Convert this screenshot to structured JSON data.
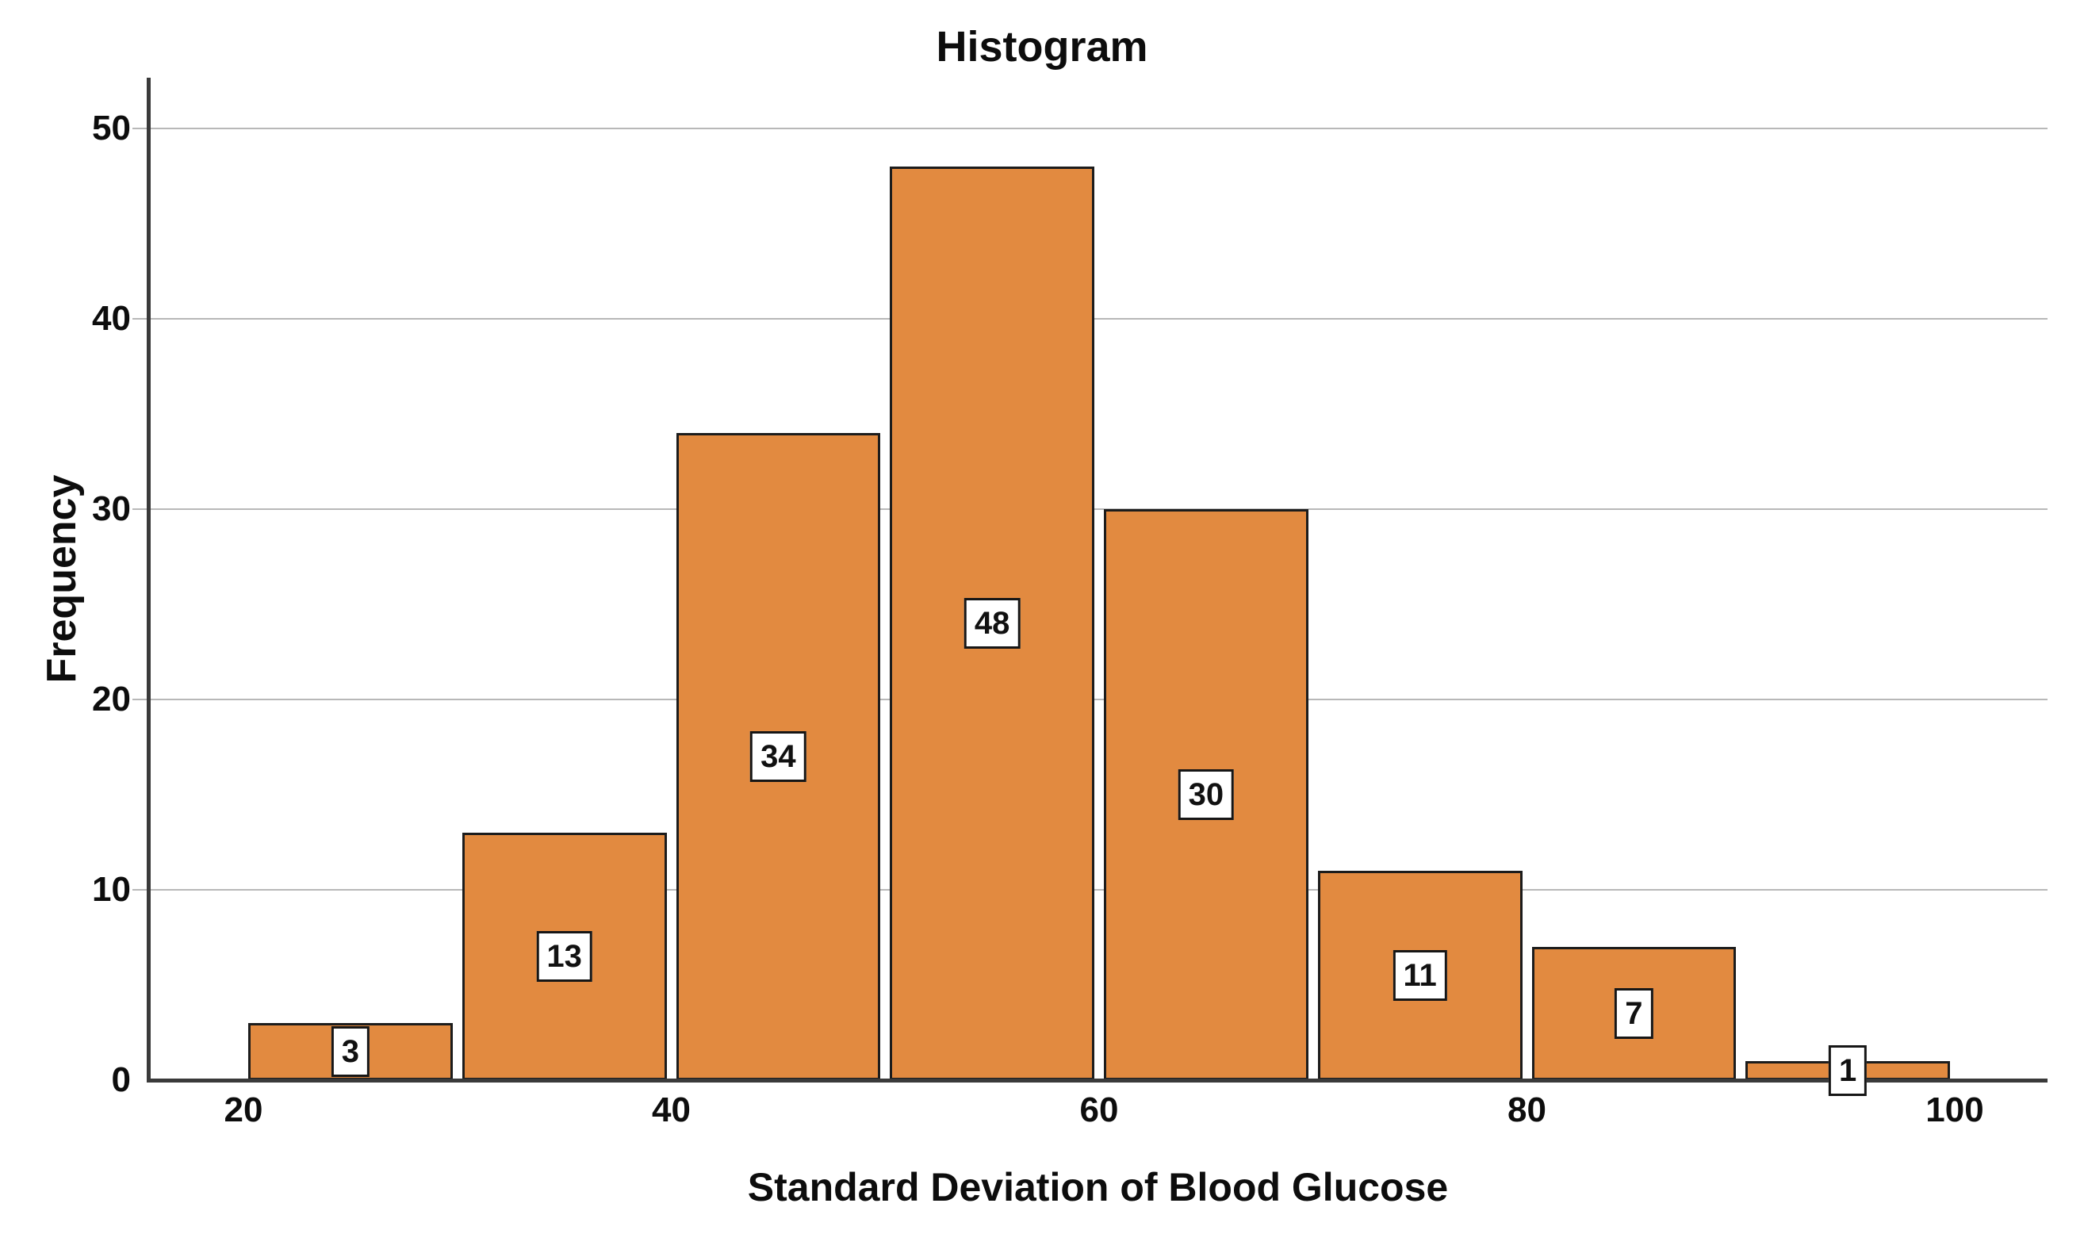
{
  "chart_data": {
    "type": "bar",
    "chart_kind": "histogram",
    "title": "Histogram",
    "xlabel": "Standard Deviation of Blood Glucose",
    "ylabel": "Frequency",
    "bins": [
      {
        "range": [
          20,
          30
        ],
        "count": 3
      },
      {
        "range": [
          30,
          40
        ],
        "count": 13
      },
      {
        "range": [
          40,
          50
        ],
        "count": 34
      },
      {
        "range": [
          50,
          60
        ],
        "count": 48
      },
      {
        "range": [
          60,
          70
        ],
        "count": 30
      },
      {
        "range": [
          70,
          80
        ],
        "count": 11
      },
      {
        "range": [
          80,
          90
        ],
        "count": 7
      },
      {
        "range": [
          90,
          100
        ],
        "count": 1
      }
    ],
    "bar_value_labels_shown": true,
    "x_ticks": [
      20,
      40,
      60,
      80,
      100
    ],
    "y_ticks": [
      0,
      10,
      20,
      30,
      40,
      50
    ],
    "xlim": [
      15.6,
      104.3
    ],
    "ylim": [
      0,
      52.7
    ],
    "grid": "horizontal",
    "legend": "none",
    "colors": {
      "bar_fill": "#E28A40",
      "bar_border": "#1c1c1c",
      "gridline": "#b8b8b8",
      "axis": "#3a3a3a",
      "label_box_bg": "#ffffff",
      "label_box_border": "#161616",
      "text": "#0d0d0d",
      "background": "#ffffff"
    }
  }
}
